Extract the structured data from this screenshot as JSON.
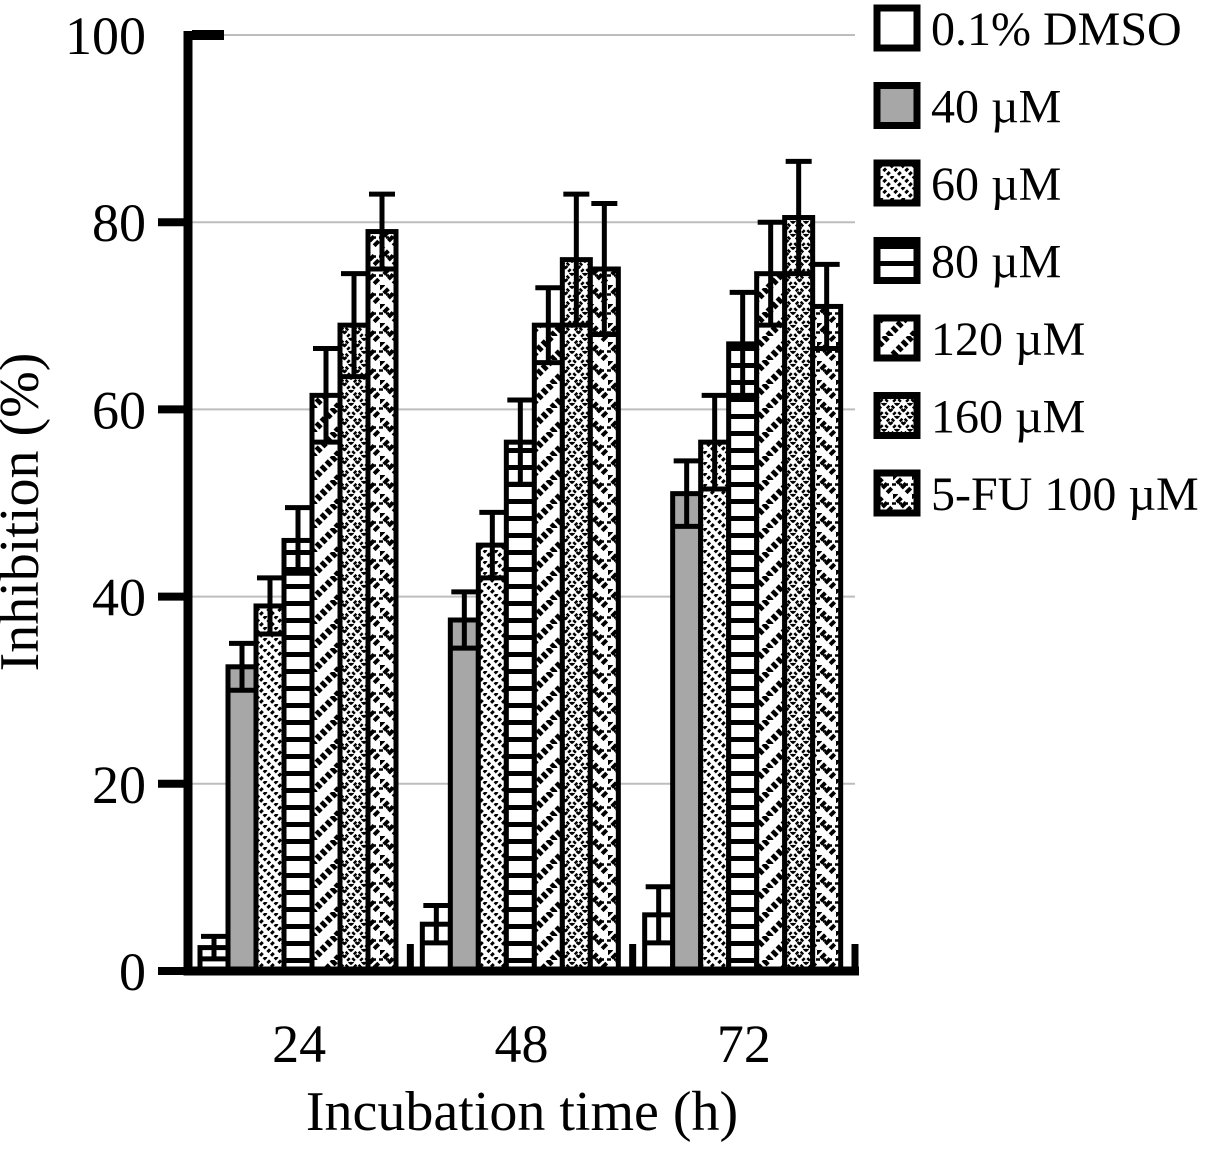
{
  "figure": {
    "y_axis_title": "Inhibition (%)",
    "x_axis_title": "Incubation time (h)"
  },
  "chart_data": {
    "type": "bar",
    "title": "",
    "xlabel": "Incubation time (h)",
    "ylabel": "Inhibition (%)",
    "ylim": [
      0,
      100
    ],
    "yticks": [
      0,
      20,
      40,
      60,
      80,
      100
    ],
    "gridline_ticks": [
      20,
      40,
      60,
      80,
      100
    ],
    "grid": true,
    "legend_position": "right",
    "categories": [
      "24",
      "48",
      "72"
    ],
    "series": [
      {
        "name": "0.1% DMSO",
        "pattern": "open",
        "values": [
          2.5,
          5,
          6
        ],
        "errors": [
          1.2,
          2,
          3
        ]
      },
      {
        "name": "40 µM",
        "pattern": "solid-gray",
        "values": [
          32.5,
          37.5,
          51
        ],
        "errors": [
          2.5,
          3,
          3.5
        ]
      },
      {
        "name": "60 µM",
        "pattern": "thin-diagonal",
        "values": [
          39,
          45.5,
          56.5
        ],
        "errors": [
          3,
          3.5,
          5
        ]
      },
      {
        "name": "80 µM",
        "pattern": "horizontal-lines",
        "values": [
          46,
          56.5,
          67
        ],
        "errors": [
          3.5,
          4.5,
          5.5
        ]
      },
      {
        "name": "120 µM",
        "pattern": "wide-diagonal-up",
        "values": [
          61.5,
          69,
          74.5
        ],
        "errors": [
          5,
          4,
          5.5
        ]
      },
      {
        "name": "160 µM",
        "pattern": "diamond-crosshatch",
        "values": [
          69,
          76,
          80.5
        ],
        "errors": [
          5.5,
          7,
          6
        ]
      },
      {
        "name": "5-FU 100 µM",
        "pattern": "wide-diagonal-down",
        "values": [
          79,
          75,
          71
        ],
        "errors": [
          4,
          7,
          4.5
        ]
      }
    ],
    "colors": {
      "ink": "#000000",
      "bar_fill_gray": "#a7a7a7",
      "bar_fill_open": "#ffffff",
      "gridline": "#bdbdbd",
      "background": "#ffffff"
    }
  }
}
